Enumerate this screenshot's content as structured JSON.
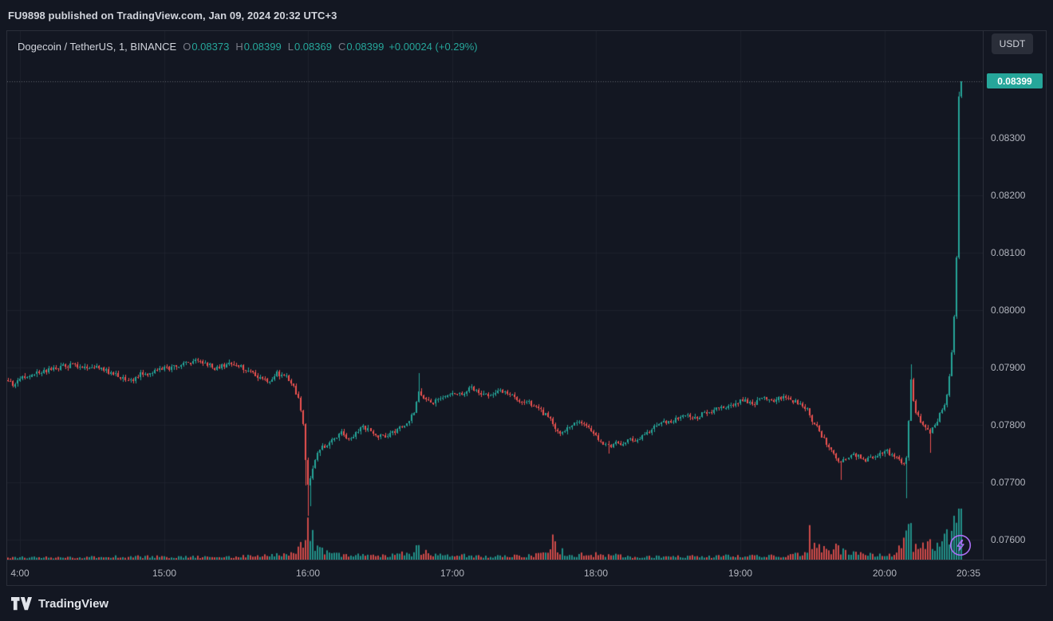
{
  "publish_bar": {
    "text": "FU9898 published on TradingView.com, Jan 09, 2024 20:32 UTC+3"
  },
  "toolbar": {
    "currency_button": "USDT"
  },
  "legend": {
    "symbol": "Dogecoin / TetherUS, 1, BINANCE",
    "o_label": "O",
    "o_value": "0.08373",
    "h_label": "H",
    "h_value": "0.08399",
    "l_label": "L",
    "l_value": "0.08369",
    "c_label": "C",
    "c_value": "0.08399",
    "change": "+0.00024 (+0.29%)"
  },
  "price_label": "0.08399",
  "footer": {
    "brand": "TradingView"
  },
  "colors": {
    "background": "#131722",
    "border": "#2a2e39",
    "grid": "#1e222d",
    "up": "#26a69a",
    "down": "#ef5350",
    "axis_text": "#b2b5be",
    "legend_text": "#d1d4dc",
    "ohlc_letter": "#787b86",
    "value_green": "#26a69a",
    "price_line": "rgba(178,181,190,0.5)",
    "flash_icon": "#ab6ff5"
  },
  "chart_data": {
    "type": "candlestick",
    "title": "Dogecoin / TetherUS, 1, BINANCE",
    "symbol": "DOGEUSDT",
    "exchange": "BINANCE",
    "interval_minutes": 1,
    "ohlc_current": {
      "open": 0.08373,
      "high": 0.08399,
      "low": 0.08369,
      "close": 0.08399,
      "change": 0.00024,
      "change_pct": 0.29
    },
    "last_price": 0.08399,
    "price_range": [
      0.076,
      0.084
    ],
    "time_range": [
      "13:55",
      "20:32"
    ],
    "y_ticks": [
      0.083,
      0.082,
      0.081,
      0.08,
      0.079,
      0.078,
      0.077,
      0.076
    ],
    "y_tick_labels": [
      "0.08300",
      "0.08200",
      "0.08100",
      "0.08000",
      "0.07900",
      "0.07800",
      "0.07700",
      "0.07600"
    ],
    "x_ticks": [
      {
        "time": "14:00",
        "label": "4:00"
      },
      {
        "time": "15:00",
        "label": "15:00"
      },
      {
        "time": "16:00",
        "label": "16:00"
      },
      {
        "time": "17:00",
        "label": "17:00"
      },
      {
        "time": "18:00",
        "label": "18:00"
      },
      {
        "time": "19:00",
        "label": "19:00"
      },
      {
        "time": "20:00",
        "label": "20:00"
      },
      {
        "time": "20:35",
        "label": "20:35"
      }
    ],
    "grid": true,
    "noise": 8e-05,
    "wick": 5e-05,
    "price_anchors": [
      [
        "13:55",
        0.07878
      ],
      [
        "13:57",
        0.0787
      ],
      [
        "14:00",
        0.07882
      ],
      [
        "14:05",
        0.07888
      ],
      [
        "14:10",
        0.07894
      ],
      [
        "14:16",
        0.079
      ],
      [
        "14:22",
        0.07905
      ],
      [
        "14:27",
        0.07898
      ],
      [
        "14:32",
        0.079
      ],
      [
        "14:37",
        0.07893
      ],
      [
        "14:42",
        0.07882
      ],
      [
        "14:46",
        0.07878
      ],
      [
        "14:50",
        0.07888
      ],
      [
        "14:55",
        0.07892
      ],
      [
        "15:00",
        0.07898
      ],
      [
        "15:05",
        0.07903
      ],
      [
        "15:10",
        0.07908
      ],
      [
        "15:13",
        0.07912
      ],
      [
        "15:17",
        0.07905
      ],
      [
        "15:21",
        0.079
      ],
      [
        "15:25",
        0.07904
      ],
      [
        "15:29",
        0.07907
      ],
      [
        "15:33",
        0.07898
      ],
      [
        "15:37",
        0.0789
      ],
      [
        "15:41",
        0.0788
      ],
      [
        "15:44",
        0.07872
      ],
      [
        "15:47",
        0.0789
      ],
      [
        "15:49",
        0.07886
      ],
      [
        "15:51",
        0.07884
      ],
      [
        "15:54",
        0.07866
      ],
      [
        "15:56",
        0.07848
      ],
      [
        "15:58",
        0.078
      ],
      [
        "15:59",
        0.07742
      ],
      [
        "16:00",
        0.07695
      ],
      [
        "16:01",
        0.07706
      ],
      [
        "16:02",
        0.07728
      ],
      [
        "16:04",
        0.07752
      ],
      [
        "16:06",
        0.07768
      ],
      [
        "16:08",
        0.0776
      ],
      [
        "16:11",
        0.07776
      ],
      [
        "16:14",
        0.07786
      ],
      [
        "16:17",
        0.07775
      ],
      [
        "16:20",
        0.07786
      ],
      [
        "16:23",
        0.07797
      ],
      [
        "16:26",
        0.0779
      ],
      [
        "16:29",
        0.07778
      ],
      [
        "16:33",
        0.07782
      ],
      [
        "16:37",
        0.07792
      ],
      [
        "16:41",
        0.078
      ],
      [
        "16:44",
        0.07822
      ],
      [
        "16:46",
        0.07862
      ],
      [
        "16:48",
        0.07845
      ],
      [
        "16:51",
        0.07838
      ],
      [
        "16:55",
        0.07846
      ],
      [
        "17:00",
        0.07852
      ],
      [
        "17:04",
        0.07856
      ],
      [
        "17:08",
        0.07864
      ],
      [
        "17:12",
        0.07855
      ],
      [
        "17:16",
        0.0785
      ],
      [
        "17:20",
        0.0786
      ],
      [
        "17:24",
        0.07852
      ],
      [
        "17:28",
        0.07842
      ],
      [
        "17:32",
        0.07838
      ],
      [
        "17:36",
        0.07826
      ],
      [
        "17:40",
        0.07815
      ],
      [
        "17:43",
        0.07792
      ],
      [
        "17:46",
        0.07786
      ],
      [
        "17:50",
        0.078
      ],
      [
        "17:54",
        0.07806
      ],
      [
        "17:58",
        0.0779
      ],
      [
        "18:02",
        0.0777
      ],
      [
        "18:05",
        0.07762
      ],
      [
        "18:08",
        0.0777
      ],
      [
        "18:11",
        0.07764
      ],
      [
        "18:14",
        0.07776
      ],
      [
        "18:17",
        0.07772
      ],
      [
        "18:21",
        0.07788
      ],
      [
        "18:25",
        0.07797
      ],
      [
        "18:29",
        0.07806
      ],
      [
        "18:33",
        0.0781
      ],
      [
        "18:37",
        0.07816
      ],
      [
        "18:41",
        0.07812
      ],
      [
        "18:45",
        0.0782
      ],
      [
        "18:49",
        0.07826
      ],
      [
        "18:53",
        0.0783
      ],
      [
        "18:57",
        0.07838
      ],
      [
        "19:01",
        0.07843
      ],
      [
        "19:05",
        0.07836
      ],
      [
        "19:09",
        0.07846
      ],
      [
        "19:13",
        0.0784
      ],
      [
        "19:17",
        0.07848
      ],
      [
        "19:21",
        0.07843
      ],
      [
        "19:25",
        0.07838
      ],
      [
        "19:28",
        0.07828
      ],
      [
        "19:30",
        0.07808
      ],
      [
        "19:33",
        0.07788
      ],
      [
        "19:36",
        0.07768
      ],
      [
        "19:39",
        0.07748
      ],
      [
        "19:42",
        0.07735
      ],
      [
        "19:45",
        0.07742
      ],
      [
        "19:48",
        0.07748
      ],
      [
        "19:51",
        0.07738
      ],
      [
        "19:54",
        0.07742
      ],
      [
        "19:57",
        0.07748
      ],
      [
        "20:00",
        0.07756
      ],
      [
        "20:03",
        0.07748
      ],
      [
        "20:06",
        0.07738
      ],
      [
        "20:08",
        0.07732
      ],
      [
        "20:09",
        0.0774
      ],
      [
        "20:10",
        0.0781
      ],
      [
        "20:11",
        0.07882
      ],
      [
        "20:12",
        0.07845
      ],
      [
        "20:13",
        0.0782
      ],
      [
        "20:15",
        0.07808
      ],
      [
        "20:17",
        0.07795
      ],
      [
        "20:19",
        0.07788
      ],
      [
        "20:21",
        0.07802
      ],
      [
        "20:23",
        0.07818
      ],
      [
        "20:25",
        0.07836
      ],
      [
        "20:26",
        0.07856
      ],
      [
        "20:27",
        0.07886
      ],
      [
        "20:28",
        0.07926
      ],
      [
        "20:29",
        0.07986
      ],
      [
        "20:30",
        0.0809
      ],
      [
        "20:31",
        0.08373
      ],
      [
        "20:32",
        0.08399
      ]
    ],
    "events": [
      {
        "t": "15:13",
        "high": 0.07916
      },
      {
        "t": "15:59",
        "low": 0.07694
      },
      {
        "t": "16:00",
        "low": 0.07642
      },
      {
        "t": "16:01",
        "low": 0.07658
      },
      {
        "t": "16:46",
        "high": 0.0789
      },
      {
        "t": "18:05",
        "low": 0.0775
      },
      {
        "t": "19:42",
        "low": 0.07704
      },
      {
        "t": "20:09",
        "low": 0.07672
      },
      {
        "t": "20:11",
        "high": 0.07906
      },
      {
        "t": "20:19",
        "low": 0.07752
      },
      {
        "t": "20:31",
        "high": 0.0838
      },
      {
        "t": "20:32",
        "open": 0.08373,
        "high": 0.08399,
        "low": 0.08369,
        "close": 0.08399
      }
    ],
    "volume_anchors": [
      [
        "13:55",
        0.05
      ],
      [
        "14:20",
        0.04
      ],
      [
        "14:45",
        0.06
      ],
      [
        "15:10",
        0.05
      ],
      [
        "15:40",
        0.07
      ],
      [
        "15:52",
        0.1
      ],
      [
        "15:57",
        0.25
      ],
      [
        "15:58",
        0.35
      ],
      [
        "15:59",
        0.55
      ],
      [
        "16:00",
        0.9
      ],
      [
        "16:01",
        0.6
      ],
      [
        "16:02",
        0.4
      ],
      [
        "16:03",
        0.3
      ],
      [
        "16:05",
        0.2
      ],
      [
        "16:08",
        0.13
      ],
      [
        "16:15",
        0.09
      ],
      [
        "16:30",
        0.08
      ],
      [
        "16:43",
        0.12
      ],
      [
        "16:45",
        0.28
      ],
      [
        "16:47",
        0.15
      ],
      [
        "16:55",
        0.09
      ],
      [
        "17:10",
        0.07
      ],
      [
        "17:25",
        0.07
      ],
      [
        "17:40",
        0.1
      ],
      [
        "17:43",
        0.62
      ],
      [
        "17:44",
        0.18
      ],
      [
        "17:50",
        0.09
      ],
      [
        "18:00",
        0.1
      ],
      [
        "18:15",
        0.06
      ],
      [
        "18:30",
        0.06
      ],
      [
        "18:45",
        0.06
      ],
      [
        "19:00",
        0.08
      ],
      [
        "19:15",
        0.07
      ],
      [
        "19:28",
        0.12
      ],
      [
        "19:29",
        0.55
      ],
      [
        "19:30",
        0.25
      ],
      [
        "19:35",
        0.18
      ],
      [
        "19:40",
        0.22
      ],
      [
        "19:45",
        0.12
      ],
      [
        "19:52",
        0.1
      ],
      [
        "20:00",
        0.1
      ],
      [
        "20:05",
        0.13
      ],
      [
        "20:08",
        0.3
      ],
      [
        "20:09",
        0.6
      ],
      [
        "20:10",
        0.5
      ],
      [
        "20:11",
        0.55
      ],
      [
        "20:12",
        0.3
      ],
      [
        "20:15",
        0.22
      ],
      [
        "20:18",
        0.28
      ],
      [
        "20:21",
        0.24
      ],
      [
        "20:24",
        0.32
      ],
      [
        "20:26",
        0.4
      ],
      [
        "20:28",
        0.55
      ],
      [
        "20:29",
        0.65
      ],
      [
        "20:30",
        0.78
      ],
      [
        "20:31",
        0.92
      ],
      [
        "20:32",
        1.0
      ]
    ]
  }
}
